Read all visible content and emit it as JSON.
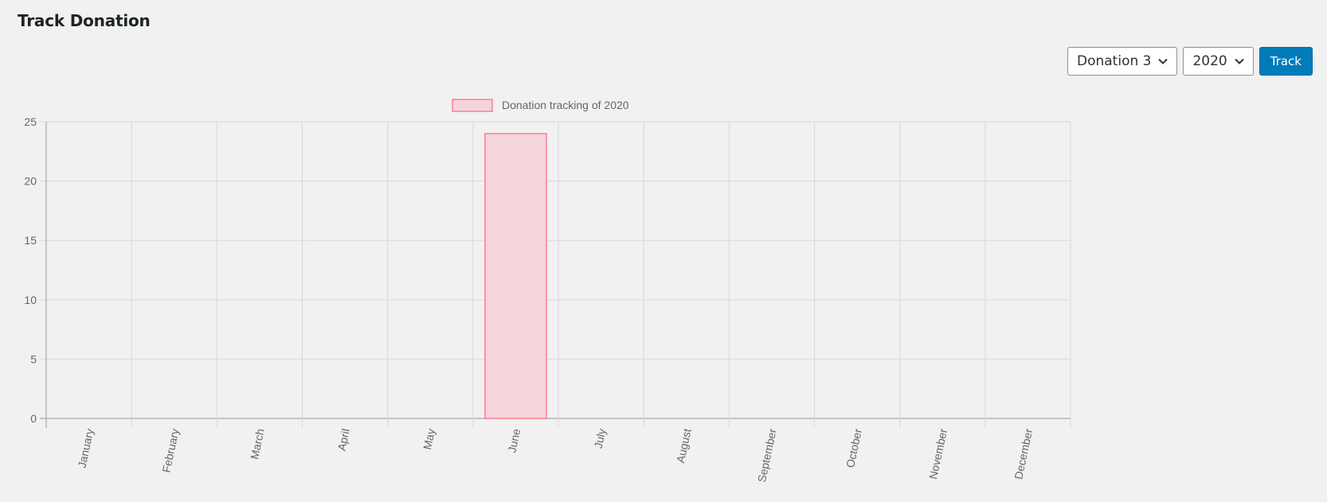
{
  "page": {
    "title": "Track Donation"
  },
  "controls": {
    "donation_select": {
      "value": "Donation 3"
    },
    "year_select": {
      "value": "2020"
    },
    "track_button": {
      "label": "Track"
    }
  },
  "chart_data": {
    "type": "bar",
    "categories": [
      "January",
      "February",
      "March",
      "April",
      "May",
      "June",
      "July",
      "August",
      "September",
      "October",
      "November",
      "December"
    ],
    "series": [
      {
        "name": "Donation tracking of 2020",
        "values": [
          0,
          0,
          0,
          0,
          0,
          24,
          0,
          0,
          0,
          0,
          0,
          0
        ]
      }
    ],
    "ylim": [
      0,
      25
    ],
    "yticks": [
      0,
      5,
      10,
      15,
      20,
      25
    ],
    "grid": true,
    "legend": "top",
    "colors": {
      "bar_fill": "#f5d5dc",
      "bar_border": "#ff6384"
    }
  }
}
